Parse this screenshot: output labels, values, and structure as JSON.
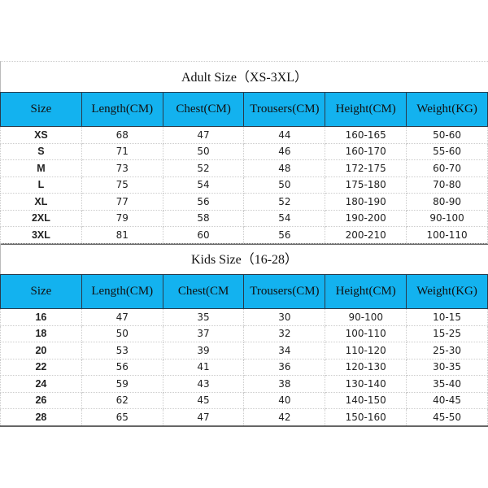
{
  "adult": {
    "title": "Adult Size（XS-3XL）",
    "headers": [
      "Size",
      "Length(CM)",
      "Chest(CM)",
      "Trousers(CM)",
      "Height(CM)",
      "Weight(KG)"
    ],
    "rows": [
      [
        "XS",
        "68",
        "47",
        "44",
        "160-165",
        "50-60"
      ],
      [
        "S",
        "71",
        "50",
        "46",
        "160-170",
        "55-60"
      ],
      [
        "M",
        "73",
        "52",
        "48",
        "172-175",
        "60-70"
      ],
      [
        "L",
        "75",
        "54",
        "50",
        "175-180",
        "70-80"
      ],
      [
        "XL",
        "77",
        "56",
        "52",
        "180-190",
        "80-90"
      ],
      [
        "2XL",
        "79",
        "58",
        "54",
        "190-200",
        "90-100"
      ],
      [
        "3XL",
        "81",
        "60",
        "56",
        "200-210",
        "100-110"
      ]
    ]
  },
  "kids": {
    "title": "Kids Size（16-28）",
    "headers": [
      "Size",
      "Length(CM)",
      "Chest(CM",
      "Trousers(CM)",
      "Height(CM)",
      "Weight(KG)"
    ],
    "rows": [
      [
        "16",
        "47",
        "35",
        "30",
        "90-100",
        "10-15"
      ],
      [
        "18",
        "50",
        "37",
        "32",
        "100-110",
        "15-25"
      ],
      [
        "20",
        "53",
        "39",
        "34",
        "110-120",
        "25-30"
      ],
      [
        "22",
        "56",
        "41",
        "36",
        "120-130",
        "30-35"
      ],
      [
        "24",
        "59",
        "43",
        "38",
        "130-140",
        "35-40"
      ],
      [
        "26",
        "62",
        "45",
        "40",
        "140-150",
        "40-45"
      ],
      [
        "28",
        "65",
        "47",
        "42",
        "150-160",
        "45-50"
      ]
    ]
  },
  "colors": {
    "header_bg": "#13b2ef"
  }
}
